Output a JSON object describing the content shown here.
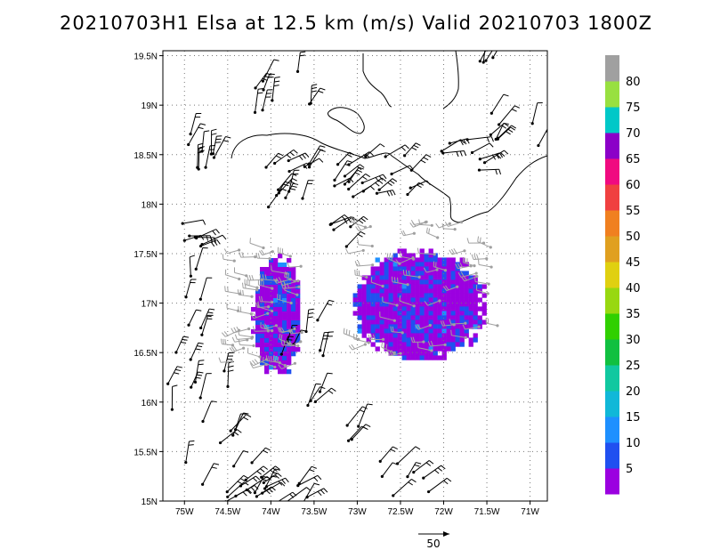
{
  "chart_data": {
    "type": "wind_barb_map",
    "title": "20210703H1 Elsa at 12.5 km (m/s) Valid 20210703 1800Z",
    "x_ticks": [
      "75W",
      "74.5W",
      "74W",
      "73.5W",
      "73W",
      "72.5W",
      "72W",
      "71.5W",
      "71W"
    ],
    "x_values": [
      -75,
      -74.5,
      -74,
      -73.5,
      -73,
      -72.5,
      -72,
      -71.5,
      -71
    ],
    "y_ticks": [
      "15N",
      "15.5N",
      "16N",
      "16.5N",
      "17N",
      "17.5N",
      "18N",
      "18.5N",
      "19N",
      "19.5N"
    ],
    "y_values": [
      15,
      15.5,
      16,
      16.5,
      17,
      17.5,
      18,
      18.5,
      19,
      19.5
    ],
    "xlim": [
      -75.25,
      -70.8
    ],
    "ylim": [
      15,
      19.55
    ],
    "grid": true,
    "colorbar": {
      "levels": [
        "5",
        "10",
        "15",
        "20",
        "25",
        "30",
        "35",
        "40",
        "45",
        "50",
        "55",
        "60",
        "65",
        "70",
        "75",
        "80"
      ],
      "colors": [
        "#9b00e0",
        "#2050f0",
        "#1e90ff",
        "#10b8d8",
        "#10c8a0",
        "#10c040",
        "#30d000",
        "#98d810",
        "#e0d010",
        "#e0a020",
        "#f08020",
        "#f04040",
        "#f00a80",
        "#8b00c8",
        "#00c8c8",
        "#98e040",
        "#a0a0a0"
      ]
    },
    "reference_vector": {
      "label": "50",
      "value": 50
    },
    "shaded_regions": [
      {
        "name": "west",
        "center": [
          -73.95,
          16.9
        ],
        "rx": 0.28,
        "ry": 0.6
      },
      {
        "name": "east",
        "center": [
          -72.3,
          17.0
        ],
        "rx": 0.75,
        "ry": 0.55
      }
    ]
  }
}
